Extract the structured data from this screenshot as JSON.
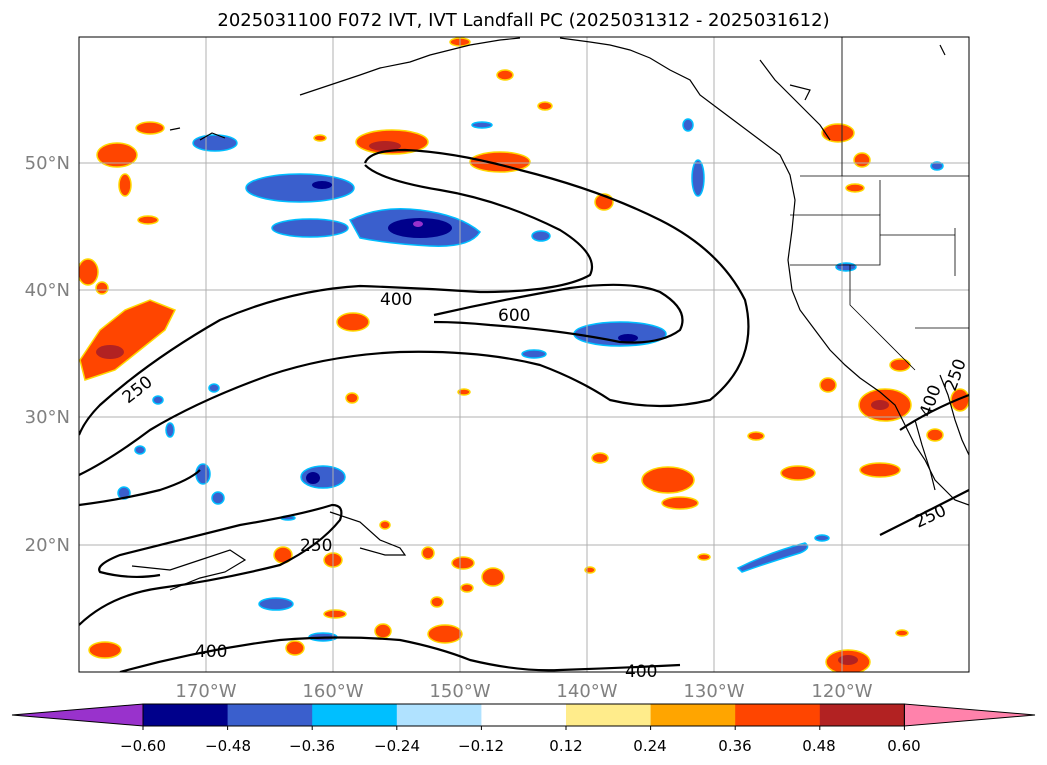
{
  "title": "2025031100 F072 IVT, IVT Landfall PC (2025031312 - 2025031612)",
  "lon_ticks": [
    "170°W",
    "160°W",
    "150°W",
    "140°W",
    "130°W",
    "120°W"
  ],
  "lat_ticks": [
    "50°N",
    "40°N",
    "30°N",
    "20°N"
  ],
  "contour_levels": [
    250,
    400,
    600
  ],
  "contour_labels": [
    "250",
    "400",
    "600",
    "400",
    "250",
    "400",
    "400",
    "250",
    "250",
    "400"
  ],
  "colorbar": {
    "ticks": [
      "−0.60",
      "−0.48",
      "−0.36",
      "−0.24",
      "−0.12",
      "0.12",
      "0.24",
      "0.36",
      "0.48",
      "0.60"
    ],
    "colors": [
      "#9932cc",
      "#00008b",
      "#3a5fcd",
      "#00bfff",
      "#b0e2ff",
      "#ffffff",
      "#ffec8b",
      "#ffa500",
      "#ff4500",
      "#b22222",
      "#ff82ab"
    ]
  },
  "chart_data": {
    "type": "heatmap",
    "title": "2025031100 F072 IVT, IVT Landfall PC (2025031312 - 2025031612)",
    "xlabel": "",
    "ylabel": "",
    "xlim": [
      -180,
      -110
    ],
    "ylim": [
      10,
      60
    ],
    "contour_levels": [
      250,
      400,
      600
    ],
    "colorbar_bounds": [
      -0.6,
      -0.48,
      -0.36,
      -0.24,
      -0.12,
      0.12,
      0.24,
      0.36,
      0.48,
      0.6
    ],
    "grid": true
  }
}
